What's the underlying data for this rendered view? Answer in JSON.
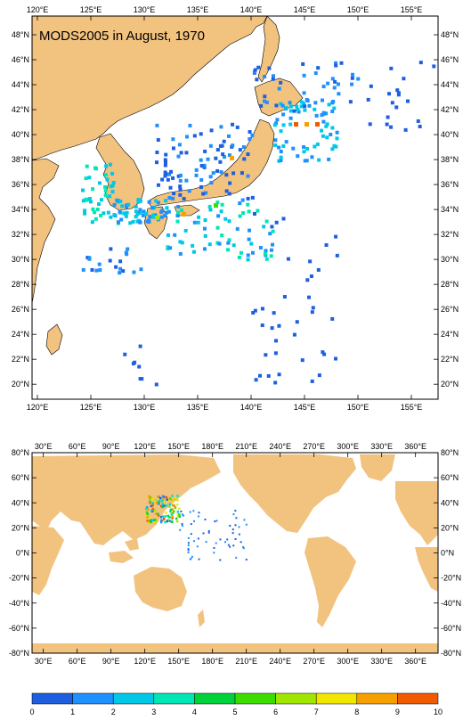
{
  "title": "MODS2005 in August, 1970",
  "colors": {
    "land": "#f2c27f",
    "sea": "#ffffff",
    "frame": "#000000"
  },
  "top_map": {
    "lon_labels": [
      "120°E",
      "125°E",
      "130°E",
      "135°E",
      "140°E",
      "145°E",
      "150°E",
      "155°E"
    ],
    "lat_labels": [
      "20°N",
      "22°N",
      "24°N",
      "26°N",
      "28°N",
      "30°N",
      "32°N",
      "34°N",
      "36°N",
      "38°N",
      "40°N",
      "42°N",
      "44°N",
      "46°N",
      "48°N"
    ],
    "lon_range": [
      119.5,
      157.5
    ],
    "lat_range": [
      18.8,
      49.5
    ]
  },
  "bottom_map": {
    "lon_labels": [
      "30°E",
      "60°E",
      "90°E",
      "120°E",
      "150°E",
      "180°E",
      "210°E",
      "240°E",
      "270°E",
      "300°E",
      "330°E",
      "360°E"
    ],
    "lat_labels": [
      "80°N",
      "60°N",
      "40°N",
      "20°N",
      "0°N",
      "-20°N",
      "-40°N",
      "-60°N",
      "-80°N"
    ],
    "lon_range": [
      20,
      380
    ],
    "lat_range": [
      -80,
      80
    ]
  },
  "colorbar": {
    "labels": [
      "0",
      "1",
      "2",
      "3",
      "4",
      "5",
      "6",
      "7",
      "8",
      "9",
      "10"
    ],
    "colors": [
      "#1e5fe0",
      "#1e90ff",
      "#00c8e6",
      "#00e6b4",
      "#00d23c",
      "#3cdc00",
      "#a0e600",
      "#f0e600",
      "#f5a000",
      "#f05a00"
    ]
  }
}
